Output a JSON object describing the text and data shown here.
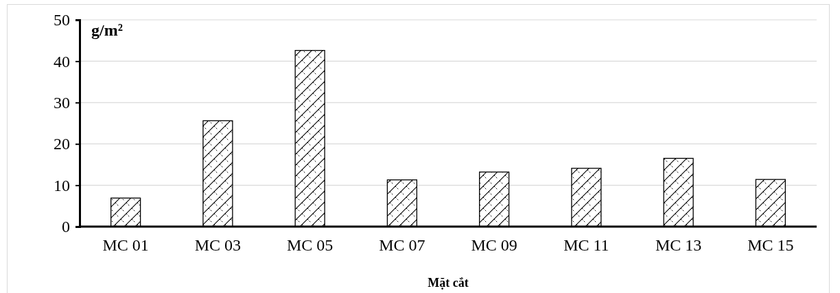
{
  "chart_data": {
    "type": "bar",
    "xlabel": "Mặt cắt",
    "ylabel": "g/m²",
    "categories": [
      "MC 01",
      "MC 03",
      "MC 05",
      "MC 07",
      "MC 09",
      "MC 11",
      "MC 13",
      "MC 15"
    ],
    "values": [
      6.9,
      25.6,
      42.6,
      11.3,
      13.2,
      14.1,
      16.5,
      11.4
    ],
    "color": "#000000",
    "ylim": [
      0,
      50
    ],
    "yticks": [
      0,
      10,
      20,
      30,
      40,
      50
    ],
    "grid": "y"
  }
}
